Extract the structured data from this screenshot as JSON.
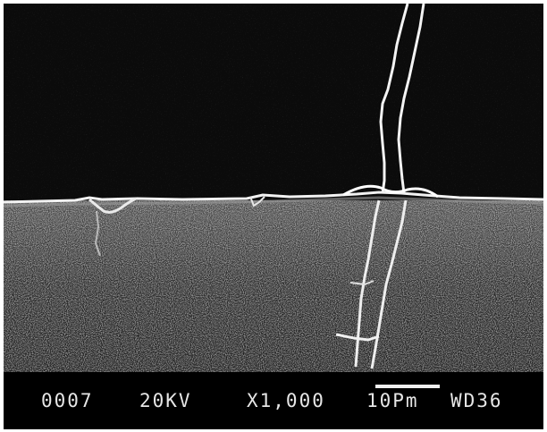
{
  "info_bar": {
    "image_number": "0007",
    "voltage": "20KV",
    "magnification": "X1,000",
    "scale": "10Pm",
    "working_distance": "WD36"
  },
  "colors": {
    "background": "#0a0a0a",
    "crack": "#f2f2f2",
    "text": "#e6e6e6"
  }
}
